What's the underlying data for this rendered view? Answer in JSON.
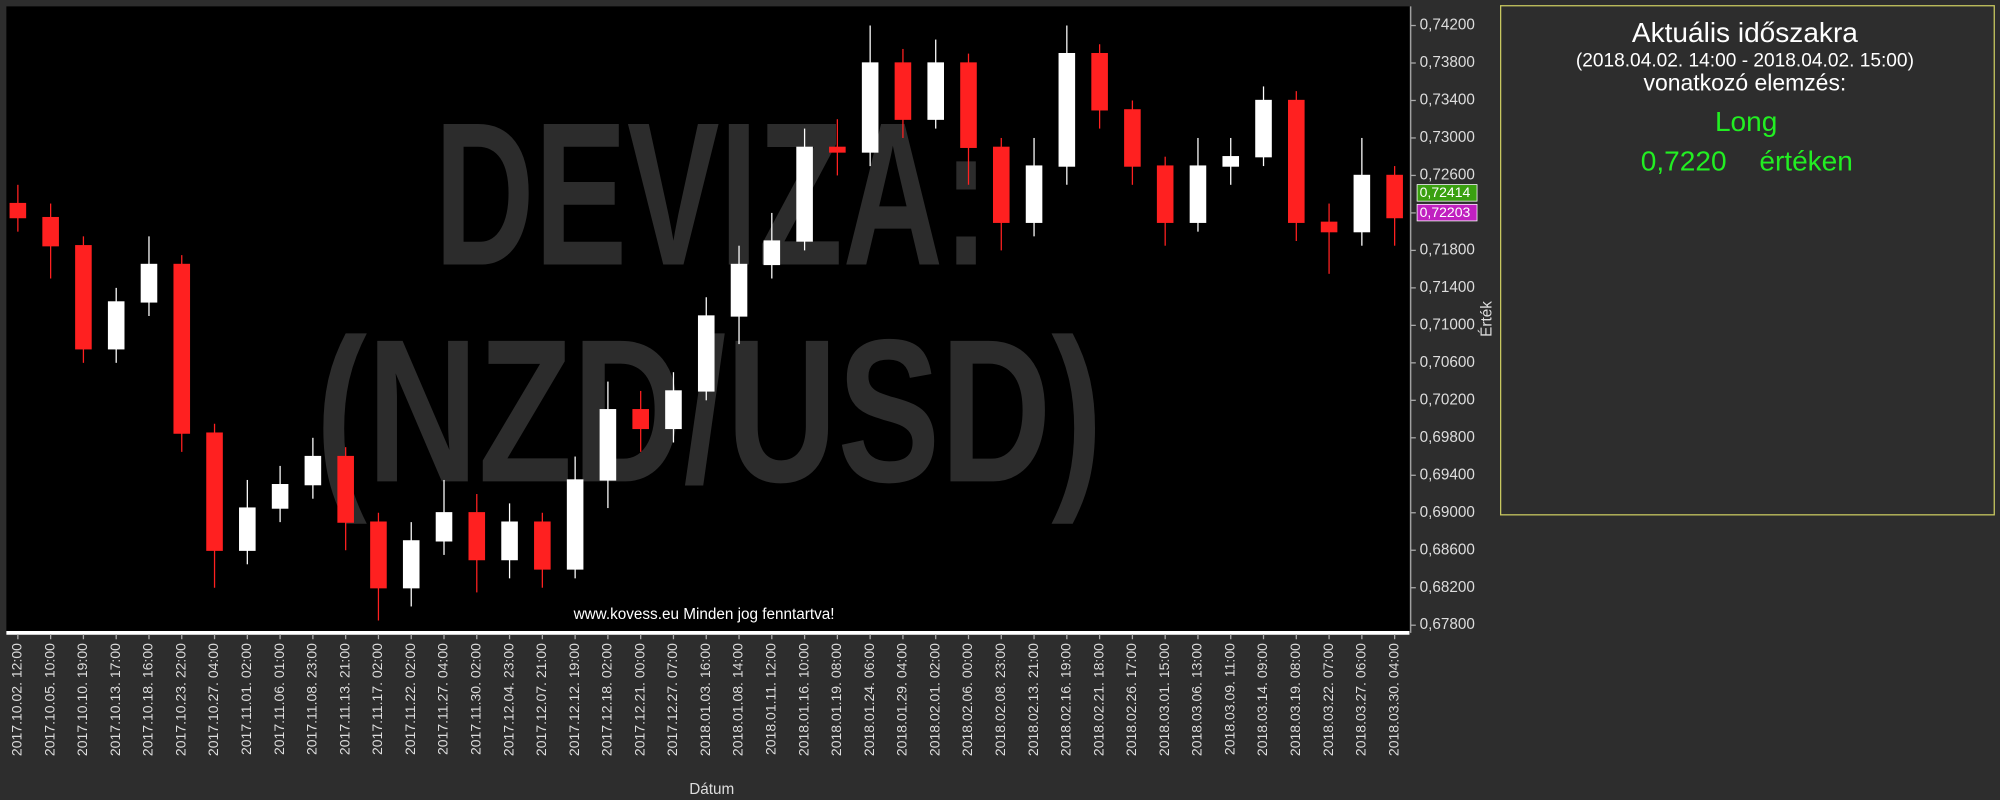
{
  "chart_data": {
    "type": "candlestick",
    "watermark": [
      "DEVIZA:",
      "(NZD/USD)"
    ],
    "copyright": "www.kovess.eu Minden jog fenntartva!",
    "x_label": "Dátum",
    "y_label": "Érték",
    "up_color": "#ffffff",
    "down_color": "#ff2020",
    "categories": [
      "2017.10.02. 12:00",
      "2017.10.05. 10:00",
      "2017.10.10. 19:00",
      "2017.10.13. 17:00",
      "2017.10.18. 16:00",
      "2017.10.23. 22:00",
      "2017.10.27. 04:00",
      "2017.11.01. 02:00",
      "2017.11.06. 01:00",
      "2017.11.08. 23:00",
      "2017.11.13. 21:00",
      "2017.11.17. 02:00",
      "2017.11.22. 02:00",
      "2017.11.27. 04:00",
      "2017.11.30. 02:00",
      "2017.12.04. 23:00",
      "2017.12.07. 21:00",
      "2017.12.12. 19:00",
      "2017.12.18. 02:00",
      "2017.12.21. 00:00",
      "2017.12.27. 07:00",
      "2018.01.03. 16:00",
      "2018.01.08. 14:00",
      "2018.01.11. 12:00",
      "2018.01.16. 10:00",
      "2018.01.19. 08:00",
      "2018.01.24. 06:00",
      "2018.01.29. 04:00",
      "2018.02.01. 02:00",
      "2018.02.06. 00:00",
      "2018.02.08. 23:00",
      "2018.02.13. 21:00",
      "2018.02.16. 19:00",
      "2018.02.21. 18:00",
      "2018.02.26. 17:00",
      "2018.03.01. 15:00",
      "2018.03.06. 13:00",
      "2018.03.09. 11:00",
      "2018.03.14. 09:00",
      "2018.03.19. 08:00",
      "2018.03.22. 07:00",
      "2018.03.27. 06:00",
      "2018.03.30. 04:00"
    ],
    "open": [
      0.723,
      0.7215,
      0.7185,
      0.7075,
      0.7125,
      0.7165,
      0.6985,
      0.686,
      0.6905,
      0.693,
      0.696,
      0.689,
      0.682,
      0.687,
      0.69,
      0.685,
      0.689,
      0.684,
      0.6935,
      0.701,
      0.699,
      0.703,
      0.711,
      0.7165,
      0.719,
      0.729,
      0.7285,
      0.738,
      0.732,
      0.738,
      0.729,
      0.721,
      0.727,
      0.739,
      0.733,
      0.727,
      0.721,
      0.727,
      0.728,
      0.734,
      0.721,
      0.72,
      0.726
    ],
    "high": [
      0.725,
      0.723,
      0.7195,
      0.714,
      0.7195,
      0.7175,
      0.6995,
      0.6935,
      0.695,
      0.698,
      0.697,
      0.69,
      0.689,
      0.6935,
      0.692,
      0.691,
      0.69,
      0.696,
      0.704,
      0.703,
      0.705,
      0.713,
      0.7185,
      0.722,
      0.731,
      0.732,
      0.742,
      0.7395,
      0.7405,
      0.739,
      0.73,
      0.73,
      0.742,
      0.74,
      0.734,
      0.728,
      0.73,
      0.73,
      0.7355,
      0.735,
      0.723,
      0.73,
      0.727
    ],
    "low": [
      0.72,
      0.715,
      0.706,
      0.706,
      0.711,
      0.6965,
      0.682,
      0.6845,
      0.689,
      0.6915,
      0.686,
      0.6785,
      0.68,
      0.6855,
      0.6815,
      0.683,
      0.682,
      0.683,
      0.6905,
      0.6965,
      0.6975,
      0.702,
      0.708,
      0.715,
      0.718,
      0.726,
      0.727,
      0.73,
      0.731,
      0.725,
      0.718,
      0.7195,
      0.725,
      0.731,
      0.725,
      0.7185,
      0.72,
      0.725,
      0.727,
      0.719,
      0.7155,
      0.7185,
      0.7185
    ],
    "close": [
      0.7215,
      0.7185,
      0.7075,
      0.7125,
      0.7165,
      0.6985,
      0.686,
      0.6905,
      0.693,
      0.696,
      0.689,
      0.682,
      0.687,
      0.69,
      0.685,
      0.689,
      0.684,
      0.6935,
      0.701,
      0.699,
      0.703,
      0.711,
      0.7165,
      0.719,
      0.729,
      0.7285,
      0.738,
      0.732,
      0.738,
      0.729,
      0.721,
      0.727,
      0.739,
      0.733,
      0.727,
      0.721,
      0.727,
      0.728,
      0.734,
      0.721,
      0.72,
      0.726,
      0.7215
    ],
    "ylim": [
      0.678,
      0.742
    ],
    "yticks": [
      {
        "value": 0.678,
        "label": "0,67800"
      },
      {
        "value": 0.682,
        "label": "0,68200"
      },
      {
        "value": 0.686,
        "label": "0,68600"
      },
      {
        "value": 0.69,
        "label": "0,69000"
      },
      {
        "value": 0.694,
        "label": "0,69400"
      },
      {
        "value": 0.698,
        "label": "0,69800"
      },
      {
        "value": 0.702,
        "label": "0,70200"
      },
      {
        "value": 0.706,
        "label": "0,70600"
      },
      {
        "value": 0.71,
        "label": "0,71000"
      },
      {
        "value": 0.714,
        "label": "0,71400"
      },
      {
        "value": 0.718,
        "label": "0,71800"
      },
      {
        "value": 0.722,
        "label": "0,72200"
      },
      {
        "value": 0.726,
        "label": "0,72600"
      },
      {
        "value": 0.73,
        "label": "0,73000"
      },
      {
        "value": 0.734,
        "label": "0,73400"
      },
      {
        "value": 0.738,
        "label": "0,73800"
      },
      {
        "value": 0.742,
        "label": "0,74200"
      }
    ],
    "price_tags": [
      {
        "value": 0.72414,
        "label": "0,72414",
        "color": "#3aa010"
      },
      {
        "value": 0.72203,
        "label": "0,72203",
        "color": "#c020c0"
      }
    ]
  },
  "panel": {
    "title": "Aktuális időszakra",
    "period": "(2018.04.02. 14:00 - 2018.04.02. 15:00)",
    "subtitle": "vonatkozó elemzés:",
    "signal": "Long",
    "price": "0,7220",
    "price_suffix": "értéken"
  }
}
